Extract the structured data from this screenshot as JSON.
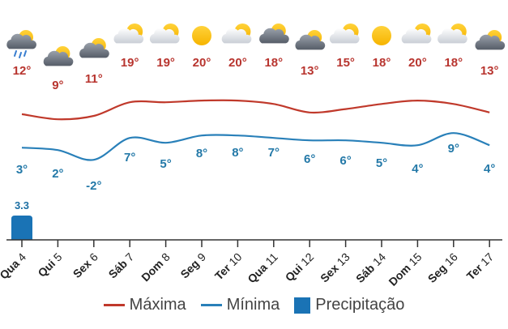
{
  "chart_data": {
    "type": "line",
    "categories": [
      {
        "dow": "Qua",
        "day": "4"
      },
      {
        "dow": "Qui",
        "day": "5"
      },
      {
        "dow": "Sex",
        "day": "6"
      },
      {
        "dow": "Sáb",
        "day": "7"
      },
      {
        "dow": "Dom",
        "day": "8"
      },
      {
        "dow": "Seg",
        "day": "9"
      },
      {
        "dow": "Ter",
        "day": "10"
      },
      {
        "dow": "Qua",
        "day": "11"
      },
      {
        "dow": "Qui",
        "day": "12"
      },
      {
        "dow": "Sex",
        "day": "13"
      },
      {
        "dow": "Sáb",
        "day": "14"
      },
      {
        "dow": "Dom",
        "day": "15"
      },
      {
        "dow": "Seg",
        "day": "16"
      },
      {
        "dow": "Ter",
        "day": "17"
      }
    ],
    "icons": [
      "rain-cloud-sun-icon",
      "cloudy-icon",
      "cloudy-icon",
      "partly-cloudy-icon",
      "partly-cloudy-icon",
      "sun-icon",
      "partly-cloudy-icon",
      "cloudy-icon",
      "cloudy-icon",
      "partly-cloudy-icon",
      "sun-icon",
      "partly-cloudy-icon",
      "partly-cloudy-icon",
      "cloudy-icon"
    ],
    "series": [
      {
        "name": "Máxima",
        "color": "#c0392b",
        "values": [
          12,
          9,
          11,
          19,
          19,
          20,
          20,
          18,
          13,
          15,
          18,
          20,
          18,
          13
        ]
      },
      {
        "name": "Mínima",
        "color": "#2980b9",
        "values": [
          3,
          2,
          -2,
          7,
          5,
          8,
          8,
          7,
          6,
          6,
          5,
          4,
          9,
          4
        ]
      },
      {
        "name": "Precipitação",
        "color": "#1a73b5",
        "type": "bar",
        "values": [
          3.3,
          null,
          null,
          null,
          null,
          null,
          null,
          null,
          null,
          null,
          null,
          null,
          null,
          null
        ]
      }
    ],
    "value_labels": {
      "max": [
        "12°",
        "9°",
        "11°",
        "19°",
        "19°",
        "20°",
        "20°",
        "18°",
        "13°",
        "15°",
        "18°",
        "20°",
        "18°",
        "13°"
      ],
      "min": [
        "3°",
        "2°",
        "-2°",
        "7°",
        "5°",
        "8°",
        "8°",
        "7°",
        "6°",
        "6°",
        "5°",
        "4°",
        "9°",
        "4°"
      ],
      "precip": [
        "3.3",
        "",
        "",
        "",
        "",
        "",
        "",
        "",
        "",
        "",
        "",
        "",
        "",
        ""
      ]
    },
    "legend": {
      "position": "bottom",
      "items": [
        "Máxima",
        "Mínima",
        "Precipitação"
      ]
    },
    "grid": false
  }
}
